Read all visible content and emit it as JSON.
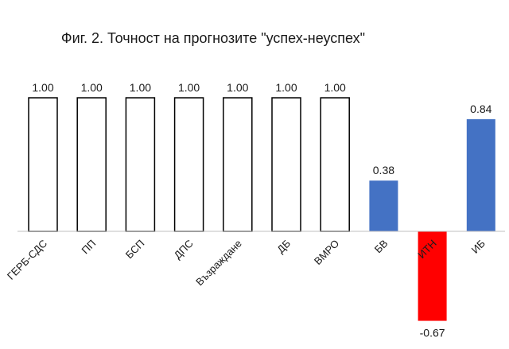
{
  "chart_data": {
    "type": "bar",
    "title": "Фиг. 2. Точност на прогнозите \"успех-неуспех\"",
    "xlabel": "",
    "ylabel": "",
    "categories": [
      "ГЕРБ-СДС",
      "ПП",
      "БСП",
      "ДПС",
      "Възраждане",
      "ДБ",
      "ВМРО",
      "БВ",
      "ИТН",
      "ИБ"
    ],
    "values": [
      1.0,
      1.0,
      1.0,
      1.0,
      1.0,
      1.0,
      1.0,
      0.38,
      -0.67,
      0.84
    ],
    "data_labels": [
      "1.00",
      "1.00",
      "1.00",
      "1.00",
      "1.00",
      "1.00",
      "1.00",
      "0.38",
      "-0.67",
      "0.84"
    ],
    "bar_styles": [
      "outline",
      "outline",
      "outline",
      "outline",
      "outline",
      "outline",
      "outline",
      "filled-blue",
      "filled-red",
      "filled-blue"
    ],
    "ylim": [
      -0.67,
      1.0
    ],
    "grid": false,
    "legend": "none",
    "colors": {
      "outline_stroke": "#000000",
      "outline_fill": "#ffffff",
      "blue": "#4472C4",
      "red": "#FF0000",
      "axis": "#bfbfbf"
    }
  }
}
